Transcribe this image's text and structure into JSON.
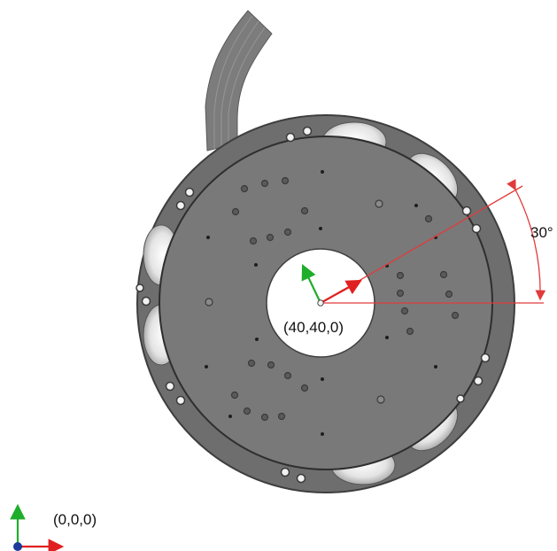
{
  "labels": {
    "center_coord": "(40,40,0)",
    "angle": "30°",
    "origin_coord": "(0,0,0)"
  },
  "colors": {
    "background": "#ffffff",
    "outer_ring": "#6e6e6e",
    "inner_plate": "#797979",
    "cable": "#7c7c7c",
    "x_axis": "#e02020",
    "y_axis": "#1fae2c",
    "origin_dot": "#1a3a9c",
    "dimension_line": "#e13b3b"
  },
  "icons": {
    "local_frame": "xy-axes-icon",
    "global_frame": "xy-axes-icon"
  }
}
